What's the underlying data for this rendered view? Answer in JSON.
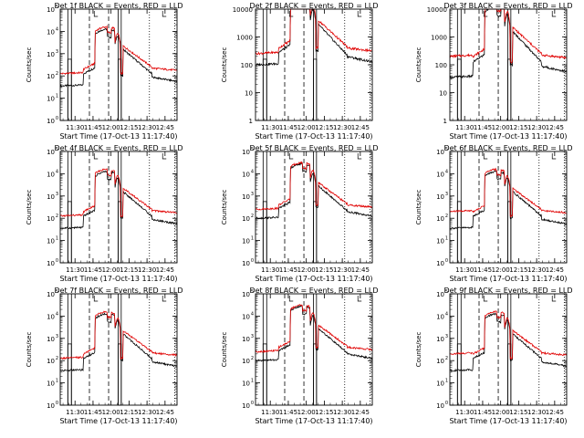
{
  "figure": {
    "background": "#ffffff",
    "ink": "#000000",
    "events_color": "#000000",
    "lld_color": "#e00000"
  },
  "chart_data": [
    {
      "type": "line",
      "title": "Det 1f BLACK = Events, RED = LLD",
      "ylabel": "Counts/sec",
      "xlabel": "Start Time (17-Oct-13 11:17:40)",
      "xticks": [
        "11:30",
        "11:45",
        "12:00",
        "12:15",
        "12:30",
        "12:45"
      ],
      "ylog": true,
      "ymin_exp": 0,
      "ymax_exp": 5,
      "yticks": [
        {
          "label": "10",
          "sup": "0"
        },
        {
          "label": "10",
          "sup": "1"
        },
        {
          "label": "10",
          "sup": "2"
        },
        {
          "label": "10",
          "sup": "3"
        },
        {
          "label": "10",
          "sup": "4"
        },
        {
          "label": "10",
          "sup": "5"
        }
      ],
      "variant": "a",
      "series": [
        {
          "name": "Events",
          "color": "#000000"
        },
        {
          "name": "LLD",
          "color": "#e00000"
        }
      ]
    },
    {
      "type": "line",
      "title": "Det 2f BLACK = Events, RED = LLD",
      "ylabel": "Counts/sec",
      "xlabel": "Start Time (17-Oct-13 11:17:40)",
      "xticks": [
        "11:30",
        "11:45",
        "12:00",
        "12:15",
        "12:30",
        "12:45"
      ],
      "ylog": true,
      "ymin_exp": 0,
      "ymax_exp": 4,
      "yticks": [
        {
          "label": "1",
          "sup": ""
        },
        {
          "label": "10",
          "sup": ""
        },
        {
          "label": "100",
          "sup": ""
        },
        {
          "label": "1000",
          "sup": ""
        },
        {
          "label": "10000",
          "sup": ""
        }
      ],
      "variant": "b",
      "series": [
        {
          "name": "Events",
          "color": "#000000"
        },
        {
          "name": "LLD",
          "color": "#e00000"
        }
      ]
    },
    {
      "type": "line",
      "title": "Det 3f BLACK = Events, RED = LLD",
      "ylabel": "Counts/sec",
      "xlabel": "Start Time (17-Oct-13 11:17:40)",
      "xticks": [
        "11:30",
        "11:45",
        "12:00",
        "12:15",
        "12:30",
        "12:45"
      ],
      "ylog": true,
      "ymin_exp": 0,
      "ymax_exp": 4,
      "yticks": [
        {
          "label": "1",
          "sup": ""
        },
        {
          "label": "10",
          "sup": ""
        },
        {
          "label": "100",
          "sup": ""
        },
        {
          "label": "1000",
          "sup": ""
        },
        {
          "label": "10000",
          "sup": ""
        }
      ],
      "variant": "c",
      "series": [
        {
          "name": "Events",
          "color": "#000000"
        },
        {
          "name": "LLD",
          "color": "#e00000"
        }
      ]
    },
    {
      "type": "line",
      "title": "Det 4f BLACK = Events, RED = LLD",
      "ylabel": "Counts/sec",
      "xlabel": "Start Time (17-Oct-13 11:17:40)",
      "xticks": [
        "11:30",
        "11:45",
        "12:00",
        "12:15",
        "12:30",
        "12:45"
      ],
      "ylog": true,
      "ymin_exp": 0,
      "ymax_exp": 5,
      "yticks": [
        {
          "label": "10",
          "sup": "0"
        },
        {
          "label": "10",
          "sup": "1"
        },
        {
          "label": "10",
          "sup": "2"
        },
        {
          "label": "10",
          "sup": "3"
        },
        {
          "label": "10",
          "sup": "4"
        },
        {
          "label": "10",
          "sup": "5"
        }
      ],
      "variant": "a",
      "series": [
        {
          "name": "Events",
          "color": "#000000"
        },
        {
          "name": "LLD",
          "color": "#e00000"
        }
      ]
    },
    {
      "type": "line",
      "title": "Det 5f BLACK = Events, RED = LLD",
      "ylabel": "Counts/sec",
      "xlabel": "Start Time (17-Oct-13 11:17:40)",
      "xticks": [
        "11:30",
        "11:45",
        "12:00",
        "12:15",
        "12:30",
        "12:45"
      ],
      "ylog": true,
      "ymin_exp": 0,
      "ymax_exp": 5,
      "yticks": [
        {
          "label": "10",
          "sup": "0"
        },
        {
          "label": "10",
          "sup": "1"
        },
        {
          "label": "10",
          "sup": "2"
        },
        {
          "label": "10",
          "sup": "3"
        },
        {
          "label": "10",
          "sup": "4"
        },
        {
          "label": "10",
          "sup": "5"
        }
      ],
      "variant": "b",
      "series": [
        {
          "name": "Events",
          "color": "#000000"
        },
        {
          "name": "LLD",
          "color": "#e00000"
        }
      ]
    },
    {
      "type": "line",
      "title": "Det 6f BLACK = Events, RED = LLD",
      "ylabel": "Counts/sec",
      "xlabel": "Start Time (17-Oct-13 11:17:40)",
      "xticks": [
        "11:30",
        "11:45",
        "12:00",
        "12:15",
        "12:30",
        "12:45"
      ],
      "ylog": true,
      "ymin_exp": 0,
      "ymax_exp": 5,
      "yticks": [
        {
          "label": "10",
          "sup": "0"
        },
        {
          "label": "10",
          "sup": "1"
        },
        {
          "label": "10",
          "sup": "2"
        },
        {
          "label": "10",
          "sup": "3"
        },
        {
          "label": "10",
          "sup": "4"
        },
        {
          "label": "10",
          "sup": "5"
        }
      ],
      "variant": "c",
      "series": [
        {
          "name": "Events",
          "color": "#000000"
        },
        {
          "name": "LLD",
          "color": "#e00000"
        }
      ]
    },
    {
      "type": "line",
      "title": "Det 7f BLACK = Events, RED = LLD",
      "ylabel": "Counts/sec",
      "xlabel": "Start Time (17-Oct-13 11:17:40)",
      "xticks": [
        "11:30",
        "11:45",
        "12:00",
        "12:15",
        "12:30",
        "12:45"
      ],
      "ylog": true,
      "ymin_exp": 0,
      "ymax_exp": 5,
      "yticks": [
        {
          "label": "10",
          "sup": "0"
        },
        {
          "label": "10",
          "sup": "1"
        },
        {
          "label": "10",
          "sup": "2"
        },
        {
          "label": "10",
          "sup": "3"
        },
        {
          "label": "10",
          "sup": "4"
        },
        {
          "label": "10",
          "sup": "5"
        }
      ],
      "variant": "a",
      "series": [
        {
          "name": "Events",
          "color": "#000000"
        },
        {
          "name": "LLD",
          "color": "#e00000"
        }
      ]
    },
    {
      "type": "line",
      "title": "Det 8f BLACK = Events, RED = LLD",
      "ylabel": "Counts/sec",
      "xlabel": "Start Time (17-Oct-13 11:17:40)",
      "xticks": [
        "11:30",
        "11:45",
        "12:00",
        "12:15",
        "12:30",
        "12:45"
      ],
      "ylog": true,
      "ymin_exp": 0,
      "ymax_exp": 5,
      "yticks": [
        {
          "label": "10",
          "sup": "0"
        },
        {
          "label": "10",
          "sup": "1"
        },
        {
          "label": "10",
          "sup": "2"
        },
        {
          "label": "10",
          "sup": "3"
        },
        {
          "label": "10",
          "sup": "4"
        },
        {
          "label": "10",
          "sup": "5"
        }
      ],
      "variant": "b",
      "series": [
        {
          "name": "Events",
          "color": "#000000"
        },
        {
          "name": "LLD",
          "color": "#e00000"
        }
      ]
    },
    {
      "type": "line",
      "title": "Det 9f BLACK = Events, RED = LLD",
      "ylabel": "Counts/sec",
      "xlabel": "Start Time (17-Oct-13 11:17:40)",
      "xticks": [
        "11:30",
        "11:45",
        "12:00",
        "12:15",
        "12:30",
        "12:45"
      ],
      "ylog": true,
      "ymin_exp": 0,
      "ymax_exp": 5,
      "yticks": [
        {
          "label": "10",
          "sup": "0"
        },
        {
          "label": "10",
          "sup": "1"
        },
        {
          "label": "10",
          "sup": "2"
        },
        {
          "label": "10",
          "sup": "3"
        },
        {
          "label": "10",
          "sup": "4"
        },
        {
          "label": "10",
          "sup": "5"
        }
      ],
      "variant": "c",
      "series": [
        {
          "name": "Events",
          "color": "#000000"
        },
        {
          "name": "LLD",
          "color": "#e00000"
        }
      ]
    }
  ]
}
